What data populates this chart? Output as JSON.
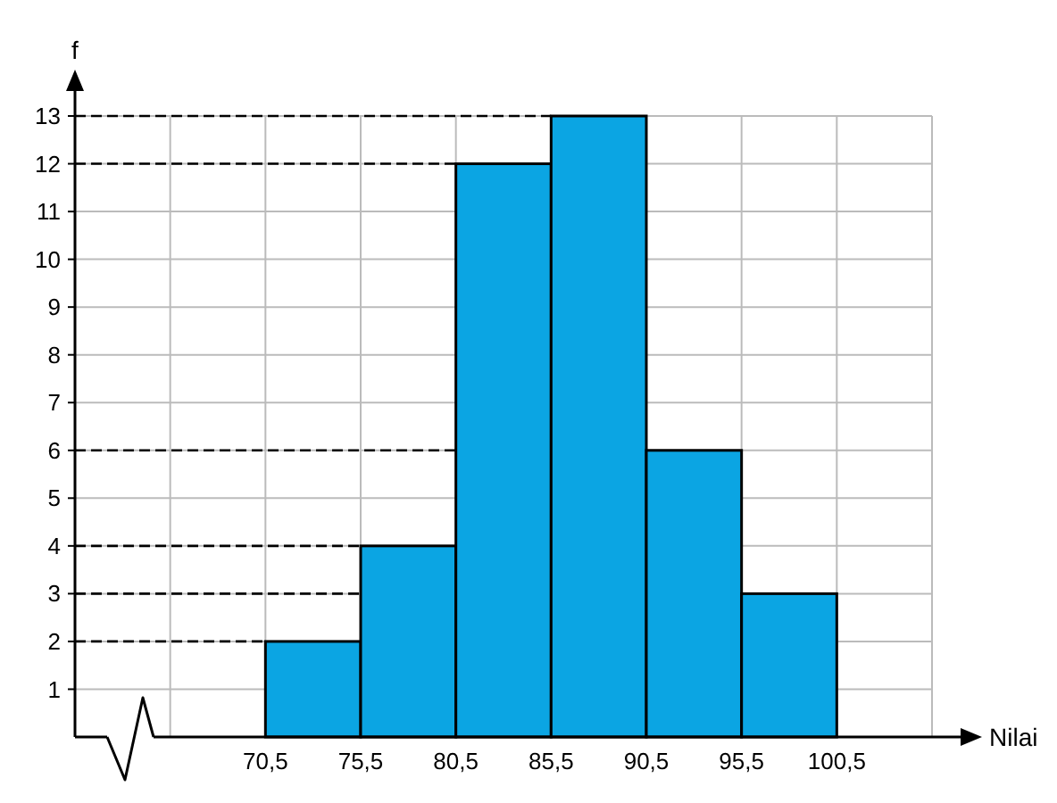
{
  "chart_data": {
    "type": "histogram",
    "xlabel": "Nilai",
    "ylabel": "f",
    "bins": [
      70.5,
      75.5,
      80.5,
      85.5,
      90.5,
      95.5,
      100.5
    ],
    "values": [
      2,
      4,
      12,
      13,
      6,
      3
    ],
    "color": "#0ba5e3",
    "xlim": [
      60.5,
      105.5
    ],
    "xticks": [
      {
        "value": 65.5,
        "label": null
      },
      {
        "value": 70.5,
        "label": "70,5"
      },
      {
        "value": 75.5,
        "label": "75,5"
      },
      {
        "value": 80.5,
        "label": "80,5"
      },
      {
        "value": 85.5,
        "label": "85,5"
      },
      {
        "value": 90.5,
        "label": "90,5"
      },
      {
        "value": 95.5,
        "label": "95,5"
      },
      {
        "value": 100.5,
        "label": "100,5"
      },
      {
        "value": 105.5,
        "label": null
      }
    ],
    "ylim": [
      0,
      13
    ],
    "yticks": [
      1,
      2,
      3,
      4,
      5,
      6,
      7,
      8,
      9,
      10,
      11,
      12,
      13
    ],
    "grid": true,
    "ref_lines": [
      {
        "axis": "y",
        "value": 2,
        "line_style": "dashed"
      },
      {
        "axis": "y",
        "value": 3,
        "line_style": "dashed"
      },
      {
        "axis": "y",
        "value": 4,
        "line_style": "dashed"
      },
      {
        "axis": "y",
        "value": 6,
        "line_style": "dashed"
      },
      {
        "axis": "y",
        "value": 12,
        "line_style": "dashed"
      },
      {
        "axis": "y",
        "value": 13,
        "line_style": "dashed"
      }
    ]
  }
}
